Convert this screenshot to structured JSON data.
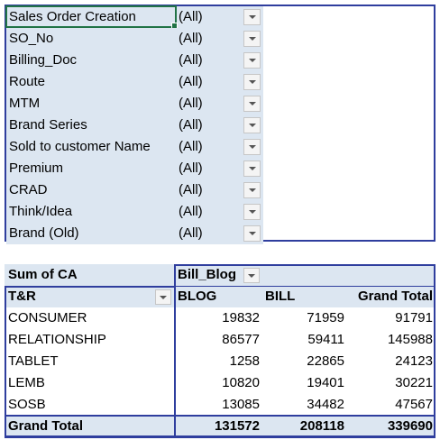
{
  "filters": [
    {
      "label": "Sales Order Creation",
      "value": "(All)"
    },
    {
      "label": "SO_No",
      "value": "(All)"
    },
    {
      "label": "Billing_Doc",
      "value": "(All)"
    },
    {
      "label": "Route",
      "value": "(All)"
    },
    {
      "label": "MTM",
      "value": "(All)"
    },
    {
      "label": "Brand Series",
      "value": "(All)"
    },
    {
      "label": "Sold to customer Name",
      "value": "(All)"
    },
    {
      "label": "Premium",
      "value": "(All)"
    },
    {
      "label": "CRAD",
      "value": "(All)"
    },
    {
      "label": "Think/Idea",
      "value": "(All)"
    },
    {
      "label": "Brand (Old)",
      "value": "(All)"
    }
  ],
  "pivot": {
    "values_label": "Sum of CA",
    "column_field": "Bill_Blog",
    "row_field": "T&R",
    "columns": [
      "BLOG",
      "BILL",
      "Grand Total"
    ],
    "rows": [
      {
        "label": "CONSUMER",
        "values": [
          "19832",
          "71959",
          "91791"
        ]
      },
      {
        "label": "RELATIONSHIP",
        "values": [
          "86577",
          "59411",
          "145988"
        ]
      },
      {
        "label": "TABLET",
        "values": [
          "1258",
          "22865",
          "24123"
        ]
      },
      {
        "label": "LEMB",
        "values": [
          "10820",
          "19401",
          "30221"
        ]
      },
      {
        "label": "SOSB",
        "values": [
          "13085",
          "34482",
          "47567"
        ]
      }
    ],
    "total": {
      "label": "Grand Total",
      "values": [
        "131572",
        "208118",
        "339690"
      ]
    }
  },
  "icons": {
    "dropdown": "dropdown-arrow-icon"
  },
  "colors": {
    "header_fill": "#dce6f1",
    "border": "#2f3e9e",
    "selection": "#217346"
  }
}
